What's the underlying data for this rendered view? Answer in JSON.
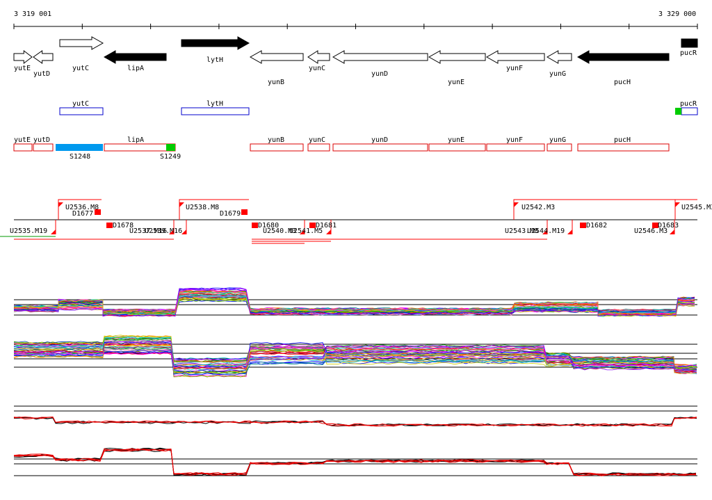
{
  "ruler": {
    "start_label": "3 319 001",
    "end_label": "3 329 000"
  },
  "colors": {
    "forward_gene": "#000000",
    "box_blue": "#0000cc",
    "box_red": "#dd0000",
    "highlight_blue": "#0099ee",
    "highlight_green": "#00cc00",
    "marker_red": "#ff0000",
    "trace_red": "#ee0000",
    "trace_black": "#000000"
  },
  "genes": [
    {
      "name": "yutE",
      "filled": false,
      "dir": "right"
    },
    {
      "name": "yutD",
      "filled": false,
      "dir": "left"
    },
    {
      "name": "yutC",
      "filled": false,
      "dir": "right"
    },
    {
      "name": "lipA",
      "filled": true,
      "dir": "left"
    },
    {
      "name": "lytH",
      "filled": true,
      "dir": "right"
    },
    {
      "name": "yunB",
      "filled": false,
      "dir": "left"
    },
    {
      "name": "yunC",
      "filled": false,
      "dir": "left"
    },
    {
      "name": "yunD",
      "filled": false,
      "dir": "left"
    },
    {
      "name": "yunE",
      "filled": false,
      "dir": "left"
    },
    {
      "name": "yunF",
      "filled": false,
      "dir": "left"
    },
    {
      "name": "yunG",
      "filled": false,
      "dir": "left"
    },
    {
      "name": "pucH",
      "filled": true,
      "dir": "left"
    },
    {
      "name": "pucR",
      "filled": true,
      "dir": "right"
    }
  ],
  "blue_boxes": [
    "yutC",
    "lytH",
    "pucR"
  ],
  "red_boxes": [
    "yutE",
    "yutD",
    "lipA",
    "yunB",
    "yunC",
    "yunD",
    "yunE",
    "yunF",
    "yunG",
    "pucH"
  ],
  "highlights": [
    {
      "label": "S1248",
      "color": "blue"
    },
    {
      "label": "S1249",
      "color": "green"
    }
  ],
  "upper_features": [
    "U2536.M8",
    "U2538.M8",
    "U2542.M3",
    "U2545.M3"
  ],
  "lower_features": [
    "U2535.M19",
    "U2537.M16",
    "U2539.M16",
    "U2540.M3",
    "U2541.M5",
    "U2543.M8",
    "U2544.M19",
    "U2546.M3"
  ],
  "d_features": [
    "D1677",
    "D1678",
    "D1679",
    "D1680",
    "D1681",
    "D1682",
    "D1683"
  ]
}
